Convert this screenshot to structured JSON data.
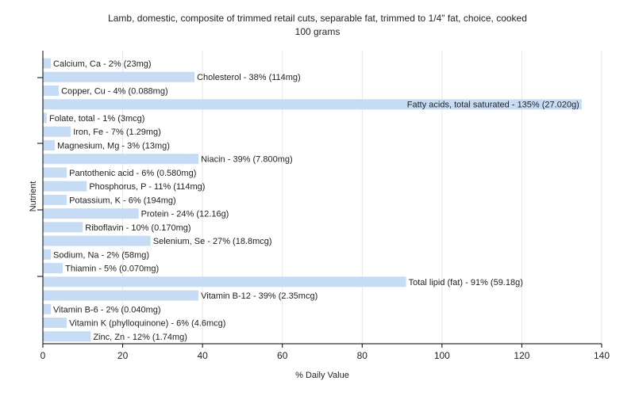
{
  "chart_data": {
    "type": "bar",
    "orientation": "horizontal",
    "title": "Lamb, domestic, composite of trimmed retail cuts, separable fat, trimmed to 1/4\" fat, choice, cooked",
    "subtitle": "100 grams",
    "xlabel": "% Daily Value",
    "ylabel": "Nutrient",
    "xlim": [
      0,
      140
    ],
    "xticks": [
      0,
      20,
      40,
      60,
      80,
      100,
      120,
      140
    ],
    "grid": true,
    "bar_color": "#c6dcf5",
    "categories": [
      "Calcium, Ca",
      "Cholesterol",
      "Copper, Cu",
      "Fatty acids, total saturated",
      "Folate, total",
      "Iron, Fe",
      "Magnesium, Mg",
      "Niacin",
      "Pantothenic acid",
      "Phosphorus, P",
      "Potassium, K",
      "Protein",
      "Riboflavin",
      "Selenium, Se",
      "Sodium, Na",
      "Thiamin",
      "Total lipid (fat)",
      "Vitamin B-12",
      "Vitamin B-6",
      "Vitamin K (phylloquinone)",
      "Zinc, Zn"
    ],
    "values": [
      2,
      38,
      4,
      135,
      1,
      7,
      3,
      39,
      6,
      11,
      6,
      24,
      10,
      27,
      2,
      5,
      91,
      39,
      2,
      6,
      12
    ],
    "labels": [
      "Calcium, Ca - 2% (23mg)",
      "Cholesterol - 38% (114mg)",
      "Copper, Cu - 4% (0.088mg)",
      "Fatty acids, total saturated - 135% (27.020g)",
      "Folate, total - 1% (3mcg)",
      "Iron, Fe - 7% (1.29mg)",
      "Magnesium, Mg - 3% (13mg)",
      "Niacin - 39% (7.800mg)",
      "Pantothenic acid - 6% (0.580mg)",
      "Phosphorus, P - 11% (114mg)",
      "Potassium, K - 6% (194mg)",
      "Protein - 24% (12.16g)",
      "Riboflavin - 10% (0.170mg)",
      "Selenium, Se - 27% (18.8mcg)",
      "Sodium, Na - 2% (58mg)",
      "Thiamin - 5% (0.070mg)",
      "Total lipid (fat) - 91% (59.18g)",
      "Vitamin B-12 - 39% (2.35mcg)",
      "Vitamin B-6 - 2% (0.040mg)",
      "Vitamin K (phylloquinone) - 6% (4.6mcg)",
      "Zinc, Zn - 12% (1.74mg)"
    ]
  }
}
